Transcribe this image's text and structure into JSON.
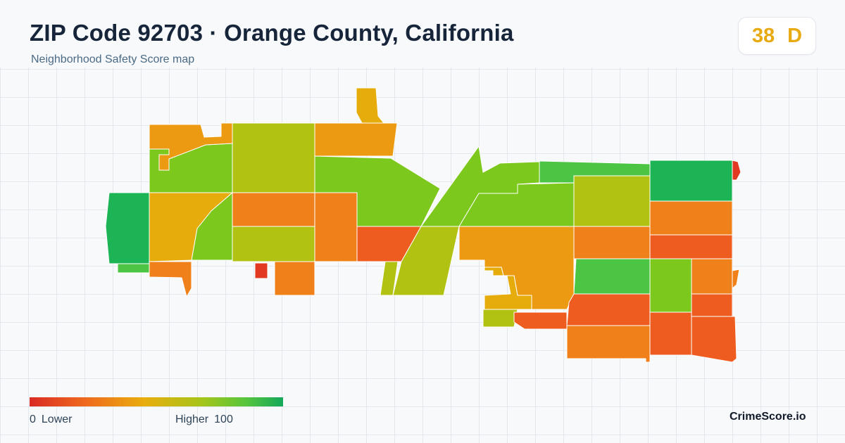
{
  "header": {
    "title": "ZIP Code 92703 · Orange County, California",
    "subtitle": "Neighborhood Safety Score map"
  },
  "score": {
    "value": "38",
    "grade": "D",
    "color": "#e7aa12"
  },
  "legend": {
    "low_value": "0",
    "low_label": "Lower",
    "high_label": "Higher",
    "high_value": "100",
    "colors": [
      "#d92b24",
      "#ef6a1e",
      "#e9ad0e",
      "#a6c51a",
      "#58c53c",
      "#14a85a"
    ]
  },
  "brand": "CrimeScore.io",
  "map": {
    "color_scale": "red-lower-green-higher",
    "area_colors": {
      "dark_green": "#1db456",
      "green": "#4cc444",
      "yellow_green": "#7dc81c",
      "olive": "#b2c212",
      "yellow": "#e5ac0c",
      "amber": "#ec9a12",
      "orange": "#f0811a",
      "orange_red": "#ee5c20",
      "red": "#e23a22"
    }
  }
}
